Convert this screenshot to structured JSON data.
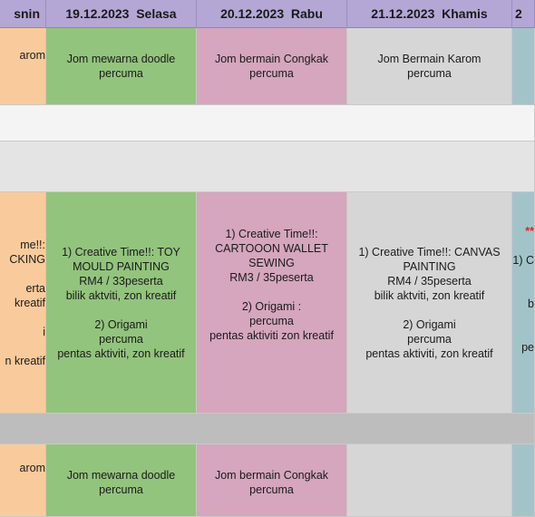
{
  "headers": {
    "col0": "snin",
    "col1": "19.12.2023  Selasa",
    "col2": "20.12.2023  Rabu",
    "col3": "21.12.2023  Khamis",
    "col4": "2"
  },
  "row1": {
    "col0": "arom",
    "col1": "Jom mewarna doodle\npercuma",
    "col2": "Jom bermain Congkak\npercuma",
    "col3": "Jom Bermain Karom\npercuma"
  },
  "row4": {
    "col0": "me!!:\nCKING\n\nerta\nkreatif\n\ni\n\nn kreatif",
    "col1": "1) Creative Time!!: TOY\nMOULD PAINTING\nRM4 / 33peserta\nbilik aktviti, zon kreatif\n\n2) Origami\npercuma\npentas aktiviti, zon kreatif",
    "col2": "1) Creative Time!!:\nCARTOOON WALLET\nSEWING\nRM3 / 35peserta\n\n2) Origami :\npercuma\npentas aktiviti zon kreatif",
    "col3": "1) Creative Time!!: CANVAS\nPAINTING\nRM4 / 35peserta\nbilik aktviti, zon kreatif\n\n2) Origami\npercuma\npentas aktiviti, zon kreatif",
    "col4_red": "**",
    "col4_text": "1) C\n\n\nb\n\n\npe"
  },
  "row6": {
    "col0": "arom",
    "col1": "Jom mewarna doodle\npercuma",
    "col2": "Jom bermain Congkak\npercuma"
  }
}
